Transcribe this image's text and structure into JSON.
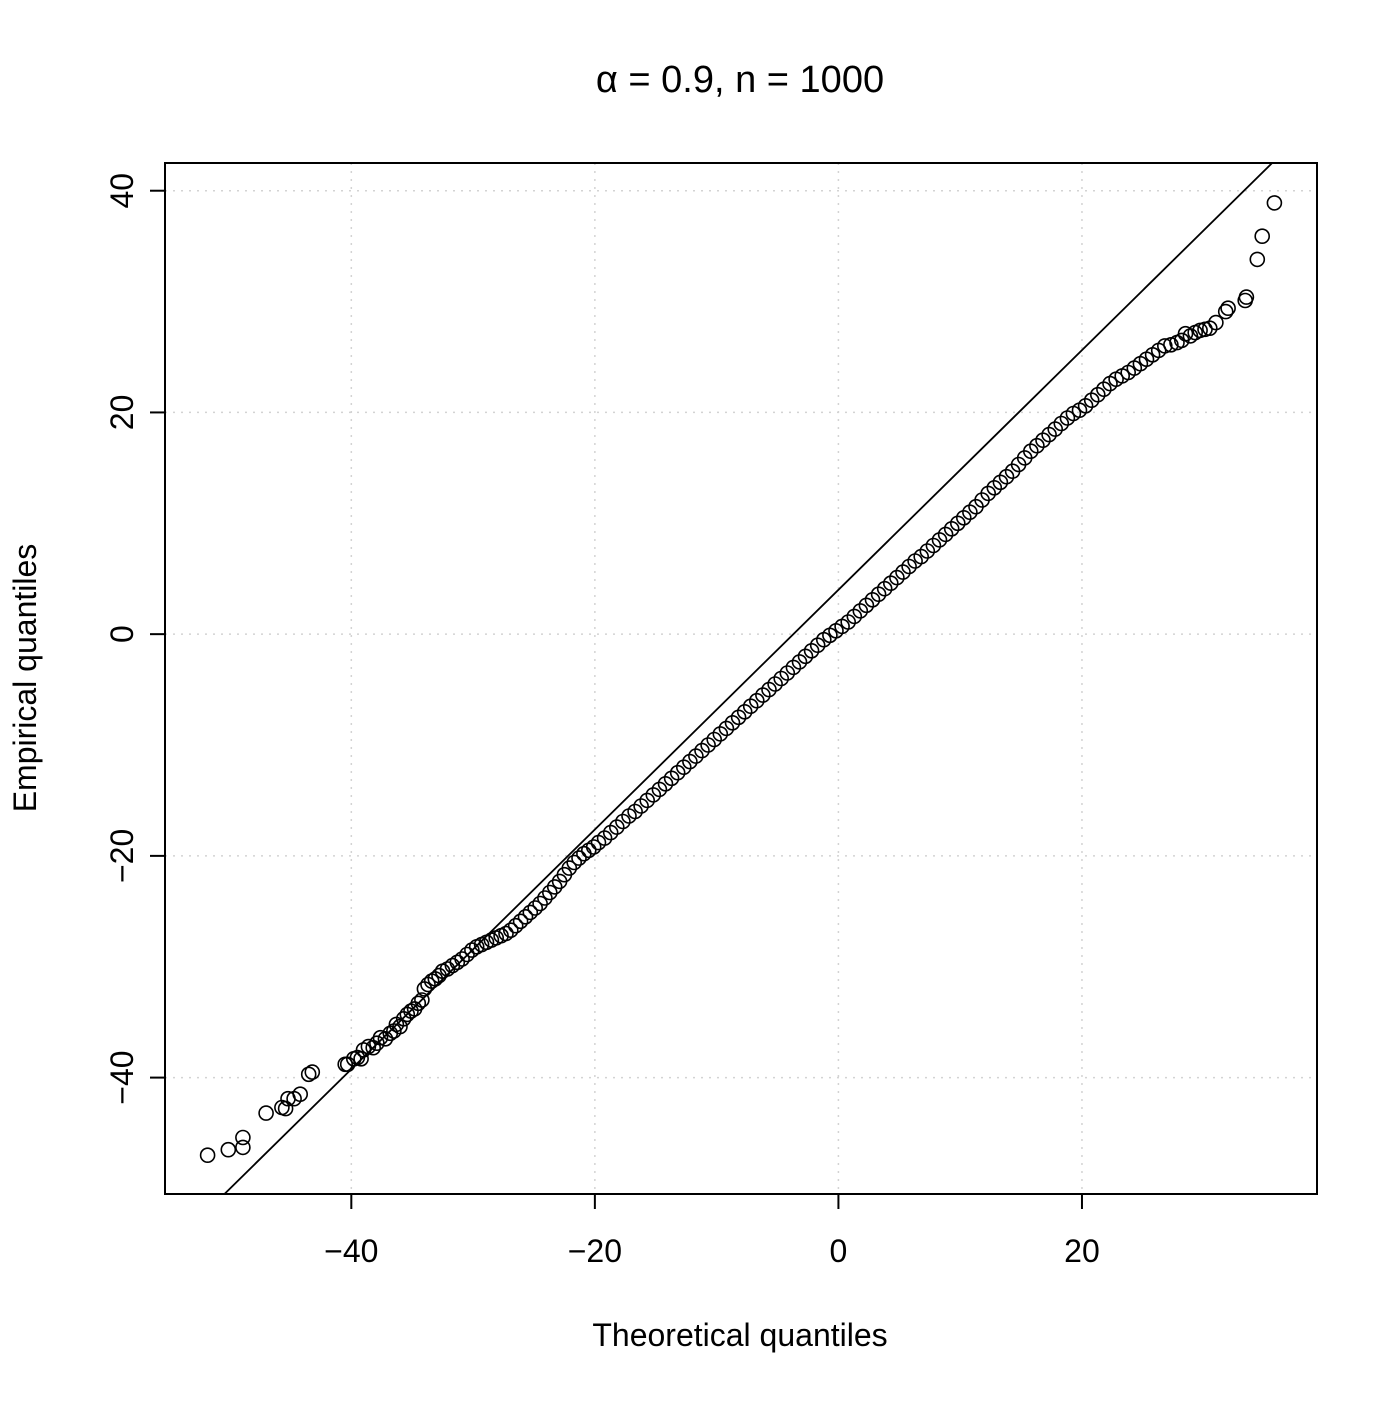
{
  "chart_data": {
    "type": "scatter",
    "title": "α = 0.9, n = 1000",
    "xlabel": "Theoretical quantiles",
    "ylabel": "Empirical quantiles",
    "xlim": [
      -55.3,
      39.3
    ],
    "ylim": [
      -50.5,
      42.5
    ],
    "x_ticks": [
      -40,
      -20,
      0,
      20
    ],
    "x_tick_labels": [
      "−40",
      "−20",
      "0",
      "20"
    ],
    "y_ticks": [
      -40,
      -20,
      0,
      20,
      40
    ],
    "y_tick_labels": [
      "−40",
      "−20",
      "0",
      "20",
      "40"
    ],
    "grid": true,
    "reference_line": {
      "slope": 1.081,
      "intercept": 4.0
    },
    "series": [
      {
        "marker": "open-circle",
        "note_points": "explicit tail points; dense body sampled along the curve",
        "points": [
          [
            -51.8,
            -47.0
          ],
          [
            -50.1,
            -46.5
          ],
          [
            -48.9,
            -46.3
          ],
          [
            -48.9,
            -45.4
          ],
          [
            -47.0,
            -43.2
          ],
          [
            -45.7,
            -42.7
          ],
          [
            -45.4,
            -42.8
          ],
          [
            -45.2,
            -41.9
          ],
          [
            -44.7,
            -41.9
          ],
          [
            -44.2,
            -41.5
          ],
          [
            -43.5,
            -39.7
          ],
          [
            -43.2,
            -39.5
          ],
          [
            -40.5,
            -38.8
          ],
          [
            -40.3,
            -38.8
          ],
          [
            -39.8,
            -38.3
          ],
          [
            -39.5,
            -38.2
          ],
          [
            -39.2,
            -38.3
          ],
          [
            -39.0,
            -37.5
          ],
          [
            -38.6,
            -37.2
          ],
          [
            -38.2,
            -37.3
          ],
          [
            -37.9,
            -36.9
          ],
          [
            -37.6,
            -36.4
          ],
          [
            -37.2,
            -36.5
          ],
          [
            -36.8,
            -36.0
          ],
          [
            -36.5,
            -35.8
          ],
          [
            -36.3,
            -35.2
          ],
          [
            -36.0,
            -35.4
          ],
          [
            -35.7,
            -34.7
          ],
          [
            -35.4,
            -34.3
          ],
          [
            -35.1,
            -34.0
          ],
          [
            -34.8,
            -33.8
          ],
          [
            -34.5,
            -33.3
          ],
          [
            -34.2,
            -33.0
          ],
          [
            -34.0,
            -32.0
          ],
          [
            -33.7,
            -31.6
          ],
          [
            -33.4,
            -31.3
          ],
          [
            -33.1,
            -31.1
          ],
          [
            -32.8,
            -30.8
          ],
          [
            -32.5,
            -30.4
          ],
          [
            -32.1,
            -30.2
          ],
          [
            -31.7,
            -29.9
          ],
          [
            -31.3,
            -29.6
          ],
          [
            -30.9,
            -29.3
          ],
          [
            -30.5,
            -28.9
          ],
          [
            -30.1,
            -28.5
          ],
          [
            -29.7,
            -28.2
          ],
          [
            -29.3,
            -28.0
          ],
          [
            -28.9,
            -27.8
          ],
          [
            -28.5,
            -27.6
          ],
          [
            -28.1,
            -27.4
          ],
          [
            -27.7,
            -27.2
          ],
          [
            -27.3,
            -27.0
          ],
          [
            -26.9,
            -26.7
          ],
          [
            -26.5,
            -26.3
          ],
          [
            -26.1,
            -25.9
          ],
          [
            -25.7,
            -25.5
          ],
          [
            -25.3,
            -25.1
          ],
          [
            -24.9,
            -24.7
          ],
          [
            -24.5,
            -24.3
          ],
          [
            -24.1,
            -23.8
          ],
          [
            -23.7,
            -23.3
          ],
          [
            -23.3,
            -22.8
          ],
          [
            -22.9,
            -22.3
          ],
          [
            -22.5,
            -21.7
          ],
          [
            -22.1,
            -21.1
          ],
          [
            -21.7,
            -20.6
          ],
          [
            -21.3,
            -20.2
          ],
          [
            -20.9,
            -19.8
          ],
          [
            -20.5,
            -19.5
          ],
          [
            -20.1,
            -19.2
          ],
          [
            -19.7,
            -18.8
          ],
          [
            -19.2,
            -18.4
          ],
          [
            -18.7,
            -17.9
          ],
          [
            -18.2,
            -17.4
          ],
          [
            -17.7,
            -16.9
          ],
          [
            -17.2,
            -16.4
          ],
          [
            -16.7,
            -16.0
          ],
          [
            -16.2,
            -15.5
          ],
          [
            -15.7,
            -15.0
          ],
          [
            -15.2,
            -14.5
          ],
          [
            -14.7,
            -14.0
          ],
          [
            -14.2,
            -13.5
          ],
          [
            -13.7,
            -13.0
          ],
          [
            -13.2,
            -12.5
          ],
          [
            -12.7,
            -12.0
          ],
          [
            -12.2,
            -11.5
          ],
          [
            -11.7,
            -11.0
          ],
          [
            -11.2,
            -10.5
          ],
          [
            -10.7,
            -10.0
          ],
          [
            -10.2,
            -9.5
          ],
          [
            -9.7,
            -9.0
          ],
          [
            -9.2,
            -8.5
          ],
          [
            -8.7,
            -8.0
          ],
          [
            -8.2,
            -7.5
          ],
          [
            -7.7,
            -7.0
          ],
          [
            -7.2,
            -6.5
          ],
          [
            -6.7,
            -6.0
          ],
          [
            -6.2,
            -5.5
          ],
          [
            -5.7,
            -5.0
          ],
          [
            -5.2,
            -4.5
          ],
          [
            -4.7,
            -4.0
          ],
          [
            -4.2,
            -3.5
          ],
          [
            -3.7,
            -3.0
          ],
          [
            -3.2,
            -2.5
          ],
          [
            -2.7,
            -2.0
          ],
          [
            -2.2,
            -1.5
          ],
          [
            -1.7,
            -1.0
          ],
          [
            -1.2,
            -0.5
          ],
          [
            -0.7,
            -0.1
          ],
          [
            -0.2,
            0.3
          ],
          [
            0.3,
            0.7
          ],
          [
            0.8,
            1.1
          ],
          [
            1.3,
            1.6
          ],
          [
            1.8,
            2.1
          ],
          [
            2.3,
            2.6
          ],
          [
            2.8,
            3.1
          ],
          [
            3.3,
            3.6
          ],
          [
            3.8,
            4.1
          ],
          [
            4.3,
            4.6
          ],
          [
            4.8,
            5.1
          ],
          [
            5.3,
            5.6
          ],
          [
            5.8,
            6.1
          ],
          [
            6.3,
            6.6
          ],
          [
            6.8,
            7.0
          ],
          [
            7.3,
            7.5
          ],
          [
            7.8,
            8.0
          ],
          [
            8.3,
            8.5
          ],
          [
            8.8,
            9.0
          ],
          [
            9.3,
            9.5
          ],
          [
            9.8,
            10.0
          ],
          [
            10.3,
            10.5
          ],
          [
            10.8,
            11.0
          ],
          [
            11.3,
            11.5
          ],
          [
            11.8,
            12.1
          ],
          [
            12.3,
            12.7
          ],
          [
            12.8,
            13.2
          ],
          [
            13.3,
            13.7
          ],
          [
            13.8,
            14.2
          ],
          [
            14.3,
            14.7
          ],
          [
            14.8,
            15.3
          ],
          [
            15.3,
            15.9
          ],
          [
            15.8,
            16.5
          ],
          [
            16.3,
            17.0
          ],
          [
            16.8,
            17.5
          ],
          [
            17.3,
            18.0
          ],
          [
            17.8,
            18.5
          ],
          [
            18.3,
            19.0
          ],
          [
            18.8,
            19.5
          ],
          [
            19.3,
            19.9
          ],
          [
            19.8,
            20.2
          ],
          [
            20.3,
            20.6
          ],
          [
            20.8,
            21.1
          ],
          [
            21.3,
            21.6
          ],
          [
            21.8,
            22.1
          ],
          [
            22.3,
            22.6
          ],
          [
            22.8,
            23.0
          ],
          [
            23.3,
            23.3
          ],
          [
            23.8,
            23.6
          ],
          [
            24.3,
            24.0
          ],
          [
            24.8,
            24.4
          ],
          [
            25.3,
            24.8
          ],
          [
            25.8,
            25.2
          ],
          [
            26.3,
            25.6
          ],
          [
            26.8,
            26.0
          ],
          [
            27.3,
            26.1
          ],
          [
            27.8,
            26.3
          ],
          [
            28.2,
            26.5
          ],
          [
            28.5,
            27.1
          ],
          [
            28.9,
            26.9
          ],
          [
            29.3,
            27.2
          ],
          [
            29.7,
            27.4
          ],
          [
            30.1,
            27.5
          ],
          [
            30.5,
            27.6
          ],
          [
            31.0,
            28.1
          ],
          [
            31.8,
            29.1
          ],
          [
            32.0,
            29.4
          ],
          [
            33.4,
            30.1
          ],
          [
            33.5,
            30.4
          ],
          [
            34.4,
            33.8
          ],
          [
            34.8,
            35.9
          ],
          [
            35.8,
            38.9
          ]
        ]
      }
    ]
  }
}
